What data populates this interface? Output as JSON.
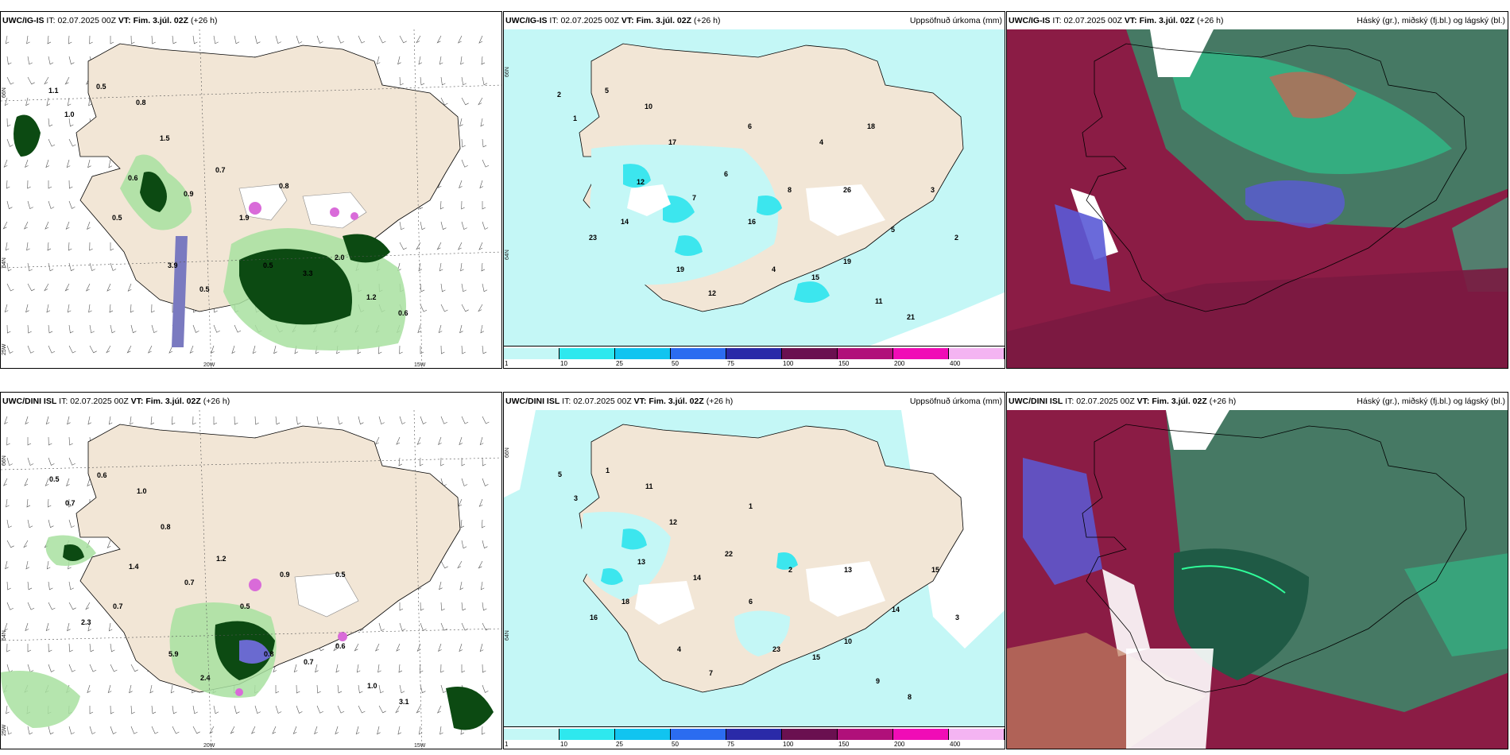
{
  "colors": {
    "land": "#f2e6d6",
    "precip_light": "#c4f7f6",
    "precip_mid": "#7eedf0",
    "cloud_high": "#2fbf8a",
    "cloud_mid": "#8b1c45",
    "cloud_low": "#5a5ad6",
    "green_dark": "#0c4a12",
    "green_light": "#a8e0a0"
  },
  "panels": [
    {
      "id": "p1",
      "model": "UWC/IG-IS",
      "it_label": "IT:",
      "it_value": "02.07.2025 00Z",
      "vt_label": "VT:",
      "vt_value": "Fim. 3.júl. 02Z",
      "lead": "(+26 h)",
      "right_label": "",
      "axis": {
        "lat1": "66N",
        "lat2": "64N",
        "lon1": "25W",
        "lon2": "20W",
        "lon3": "15W"
      },
      "labels": [
        "1.1",
        "1.0",
        "0.5",
        "0.8",
        "1.5",
        "0.6",
        "0.9",
        "0.7",
        "0.5",
        "3.3",
        "2.0",
        "1.2",
        "0.6",
        "3.9",
        "0.5",
        "1.9",
        "0.8",
        "0.5"
      ]
    },
    {
      "id": "p2",
      "model": "UWC/IG-IS",
      "it_label": "IT:",
      "it_value": "02.07.2025 00Z",
      "vt_label": "VT:",
      "vt_value": "Fim. 3.júl. 02Z",
      "lead": "(+26 h)",
      "right_label": "Uppsöfnuð úrkoma (mm)",
      "axis": {
        "lat1": "66N",
        "lat2": "64N"
      },
      "labels": [
        "2",
        "1",
        "5",
        "10",
        "17",
        "12",
        "7",
        "6",
        "4",
        "15",
        "19",
        "11",
        "21",
        "19",
        "12",
        "16",
        "8",
        "14",
        "23",
        "26",
        "5",
        "3",
        "2",
        "6",
        "4",
        "18"
      ],
      "colorbar": [
        "1",
        "10",
        "25",
        "50",
        "75",
        "100",
        "150",
        "200",
        "400"
      ]
    },
    {
      "id": "p3",
      "model": "UWC/IG-IS",
      "it_label": "IT:",
      "it_value": "02.07.2025 00Z",
      "vt_label": "VT:",
      "vt_value": "Fim. 3.júl. 02Z",
      "lead": "(+26 h)",
      "right_label": "Háský (gr.), miðský (fj.bl.) og lágský (bl.)"
    },
    {
      "id": "p4",
      "model": "UWC/DINI ISL",
      "it_label": "IT:",
      "it_value": "02.07.2025 00Z",
      "vt_label": "VT:",
      "vt_value": "Fim. 3.júl. 02Z",
      "lead": "(+26 h)",
      "right_label": "",
      "axis": {
        "lat1": "66N",
        "lat2": "64N",
        "lon1": "25W",
        "lon2": "20W",
        "lon3": "15W"
      },
      "labels": [
        "0.5",
        "0.7",
        "0.6",
        "1.0",
        "0.8",
        "1.4",
        "0.7",
        "1.2",
        "0.8",
        "0.7",
        "0.6",
        "1.0",
        "3.1",
        "5.9",
        "2.4",
        "0.5",
        "0.9",
        "0.7",
        "2.3",
        "0.5"
      ]
    },
    {
      "id": "p5",
      "model": "UWC/DINI ISL",
      "it_label": "IT:",
      "it_value": "02.07.2025 00Z",
      "vt_label": "VT:",
      "vt_value": "Fim. 3.júl. 02Z",
      "lead": "(+26 h)",
      "right_label": "Uppsöfnuð úrkoma (mm)",
      "axis": {
        "lat1": "66N",
        "lat2": "64N"
      },
      "labels": [
        "5",
        "3",
        "1",
        "11",
        "12",
        "13",
        "14",
        "22",
        "23",
        "15",
        "10",
        "9",
        "8",
        "4",
        "7",
        "6",
        "2",
        "18",
        "16",
        "13",
        "14",
        "15",
        "3",
        "1"
      ],
      "colorbar": [
        "1",
        "10",
        "25",
        "50",
        "75",
        "100",
        "150",
        "200",
        "400"
      ]
    },
    {
      "id": "p6",
      "model": "UWC/DINI ISL",
      "it_label": "IT:",
      "it_value": "02.07.2025 00Z",
      "vt_label": "VT:",
      "vt_value": "Fim. 3.júl. 02Z",
      "lead": "(+26 h)",
      "right_label": "Háský (gr.), miðský (fj.bl.) og lágský (bl.)"
    }
  ]
}
